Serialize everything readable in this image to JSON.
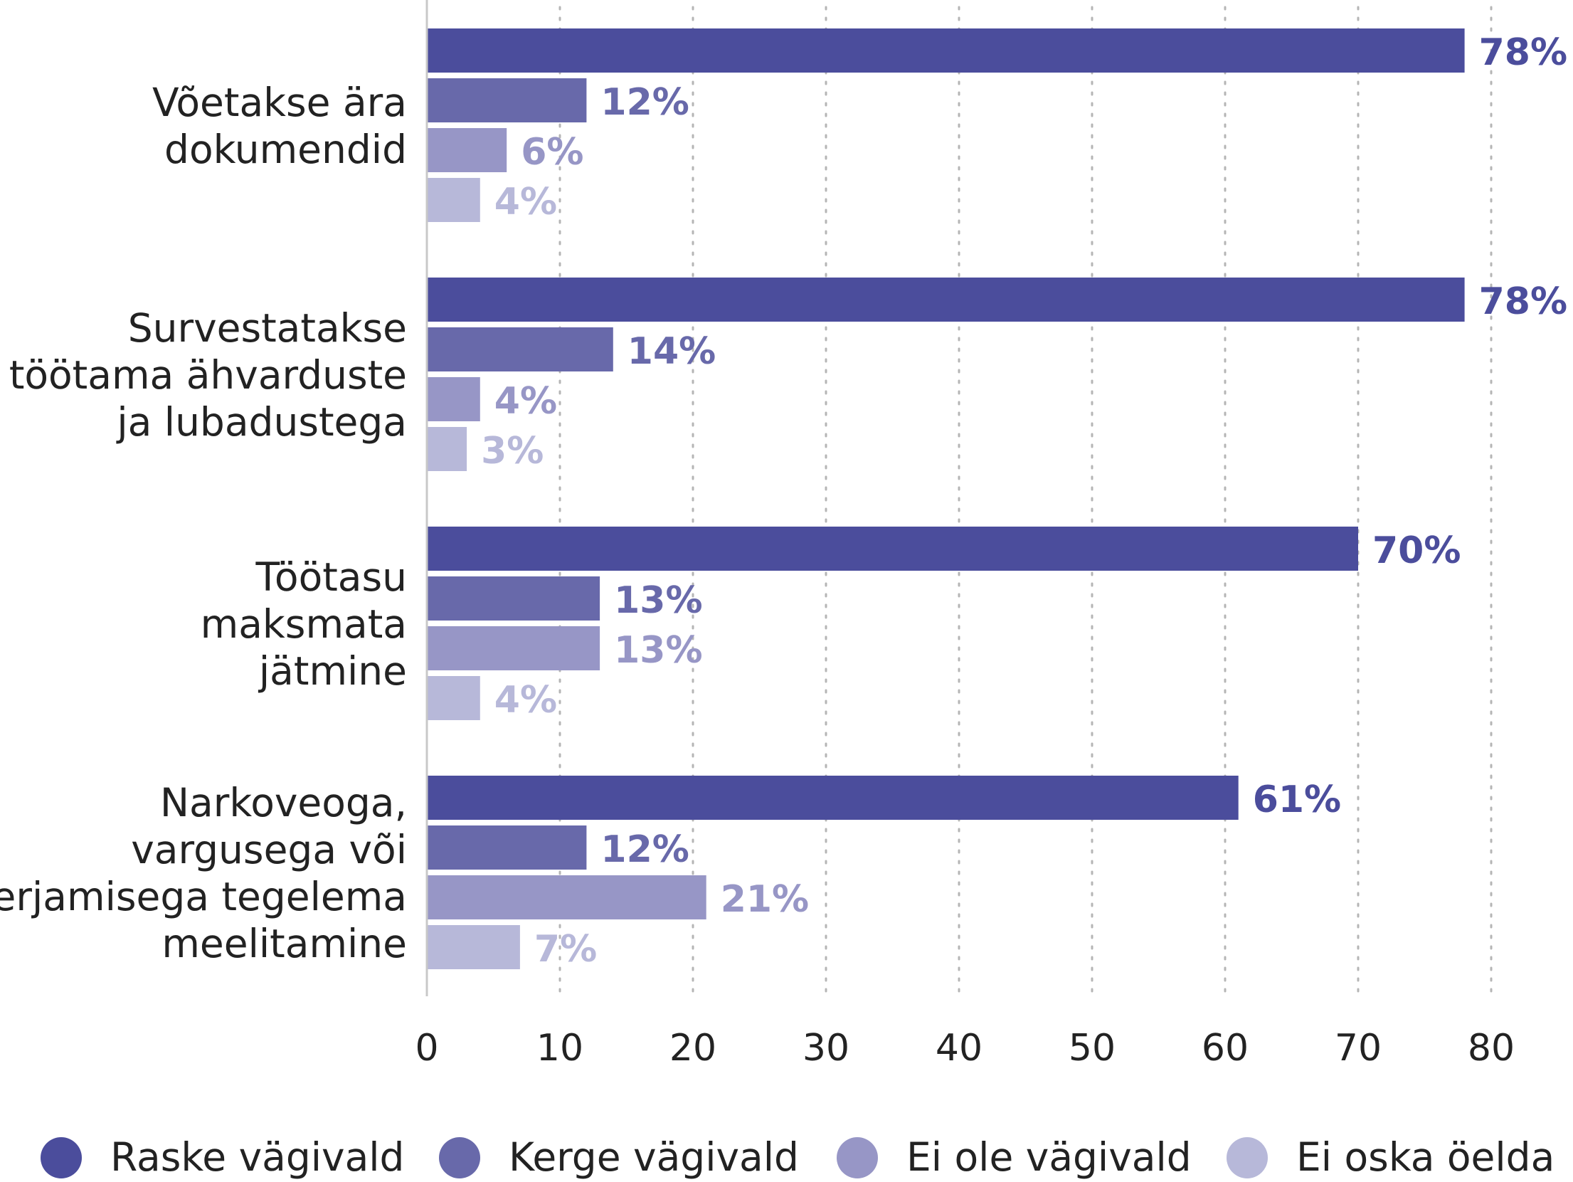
{
  "chart_data": {
    "type": "bar",
    "orientation": "horizontal",
    "categories": [
      [
        "Võetakse ära",
        "dokumendid"
      ],
      [
        "Survestatakse",
        "töötama ähvarduste",
        "ja lubadustega"
      ],
      [
        "Töötasu",
        "maksmata",
        "jätmine"
      ],
      [
        "Narkoveoga,",
        "vargusega või",
        "kerjamisega tegelema",
        "meelitamine"
      ]
    ],
    "series": [
      {
        "name": "Raske vägivald",
        "color": "#4B4D9C",
        "values": [
          78,
          78,
          70,
          61
        ]
      },
      {
        "name": "Kerge vägivald",
        "color": "#6869AA",
        "values": [
          12,
          14,
          13,
          12
        ]
      },
      {
        "name": "Ei ole vägivald",
        "color": "#9796C6",
        "values": [
          6,
          4,
          13,
          21
        ]
      },
      {
        "name": "Ei oska öelda",
        "color": "#B7B8D9",
        "values": [
          4,
          3,
          4,
          7
        ]
      }
    ],
    "value_suffix": "%",
    "xlim": [
      0,
      80
    ],
    "xticks": [
      "0",
      "10",
      "20",
      "30",
      "40",
      "50",
      "60",
      "70",
      "80"
    ],
    "grid": "vertical dotted",
    "legend": "bottom",
    "title": "",
    "xlabel": "",
    "ylabel": ""
  }
}
